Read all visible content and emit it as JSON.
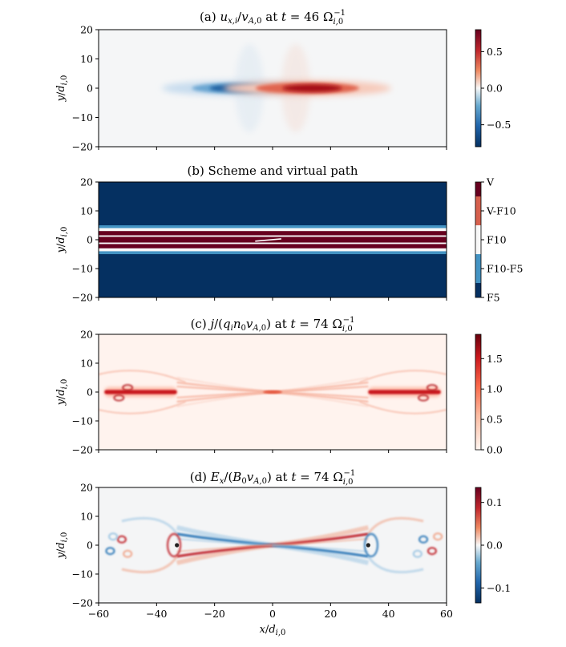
{
  "figure": {
    "x_label": "x/d_{i,0}"
  },
  "chart_data": [
    {
      "type": "heatmap",
      "panel_label": "(a)",
      "title": "(a) u_{x,i}/v_{A,0} at t = 46 Ω_{i,0}^{-1}",
      "ylabel": "y/d_{i,0}",
      "xlim": [
        -60,
        60
      ],
      "ylim": [
        -20,
        20
      ],
      "yticks": [
        "20",
        "10",
        "0",
        "−10",
        "−20"
      ],
      "colormap": "RdBu_r",
      "colorbar": {
        "range": [
          -0.8,
          0.8
        ],
        "ticks": [
          "0.5",
          "0.0",
          "−0.5"
        ],
        "tick_values": [
          0.5,
          0.0,
          -0.5
        ]
      },
      "features": [
        {
          "kind": "jet",
          "x_center": -11,
          "x_halfwidth": 16,
          "y_halfwidth": 2.2,
          "value": -0.75
        },
        {
          "kind": "jet",
          "x_center": 12,
          "x_halfwidth": 17,
          "y_halfwidth": 2.3,
          "value": 0.8
        }
      ]
    },
    {
      "type": "heatmap",
      "panel_label": "(b)",
      "title": "(b) Scheme and virtual path",
      "ylabel": "y/d_{i,0}",
      "xlim": [
        -60,
        60
      ],
      "ylim": [
        -20,
        20
      ],
      "yticks": [
        "20",
        "10",
        "0",
        "−10",
        "−20"
      ],
      "colormap": "discrete",
      "colorbar": {
        "categories": [
          "V",
          "V-F10",
          "F10",
          "F10-F5",
          "F5"
        ],
        "colors": [
          "#67001f",
          "#d6604d",
          "#f7f7f7",
          "#4393c3",
          "#053061"
        ]
      },
      "bands": [
        {
          "y_from": 5,
          "y_to": 20,
          "category": "F5"
        },
        {
          "y_from": 4,
          "y_to": 5,
          "category": "F10-F5"
        },
        {
          "y_from": 3,
          "y_to": 4,
          "category": "F10"
        },
        {
          "y_from": 1.5,
          "y_to": 3,
          "category": "V"
        },
        {
          "y_from": 1,
          "y_to": 1.5,
          "category": "F10"
        },
        {
          "y_from": -1,
          "y_to": 1,
          "category": "V"
        },
        {
          "y_from": -1.5,
          "y_to": -1,
          "category": "F10"
        },
        {
          "y_from": -3,
          "y_to": -1.5,
          "category": "V"
        },
        {
          "y_from": -4,
          "y_to": -3,
          "category": "F10"
        },
        {
          "y_from": -5,
          "y_to": -4,
          "category": "F10-F5"
        },
        {
          "y_from": -20,
          "y_to": -5,
          "category": "F5"
        }
      ],
      "virtual_path": {
        "x": [
          -6,
          3
        ],
        "y": [
          -0.5,
          0.3
        ],
        "color": "#ffffff"
      }
    },
    {
      "type": "heatmap",
      "panel_label": "(c)",
      "title": "(c) j/(q_i n_0 v_{A,0}) at t = 74 Ω_{i,0}^{-1}",
      "ylabel": "y/d_{i,0}",
      "xlim": [
        -60,
        60
      ],
      "ylim": [
        -20,
        20
      ],
      "yticks": [
        "20",
        "10",
        "0",
        "−10",
        "−20"
      ],
      "colormap": "Reds",
      "colorbar": {
        "range": [
          0,
          1.9
        ],
        "ticks": [
          "1.5",
          "1.0",
          "0.5",
          "0.0"
        ],
        "tick_values": [
          1.5,
          1.0,
          0.5,
          0.0
        ]
      },
      "features": [
        {
          "kind": "island",
          "x_from": -60,
          "x_to": -33,
          "value": 1.9
        },
        {
          "kind": "island",
          "x_from": 33,
          "x_to": 60,
          "value": 1.9
        },
        {
          "kind": "xpoint",
          "x": 0,
          "y": 0,
          "value": 0.6
        }
      ]
    },
    {
      "type": "heatmap",
      "panel_label": "(d)",
      "title": "(d) E_x/(B_0 v_{A,0}) at t = 74 Ω_{i,0}^{-1}",
      "ylabel": "y/d_{i,0}",
      "xlabel": "x/d_{i,0}",
      "xlim": [
        -60,
        60
      ],
      "ylim": [
        -20,
        20
      ],
      "xticks": [
        "−60",
        "−40",
        "−20",
        "0",
        "20",
        "40",
        "60"
      ],
      "yticks": [
        "20",
        "10",
        "0",
        "−10",
        "−20"
      ],
      "colormap": "RdBu_r",
      "colorbar": {
        "range": [
          -0.135,
          0.135
        ],
        "ticks": [
          "0.1",
          "0.0",
          "−0.1"
        ],
        "tick_values": [
          0.1,
          0.0,
          -0.1
        ]
      },
      "features": [
        {
          "kind": "separatrix_wedge",
          "x_from": 0,
          "x_to": -33,
          "upper": "blue",
          "lower": "red"
        },
        {
          "kind": "separatrix_wedge",
          "x_from": 0,
          "x_to": 33,
          "upper": "red",
          "lower": "blue"
        }
      ]
    }
  ]
}
